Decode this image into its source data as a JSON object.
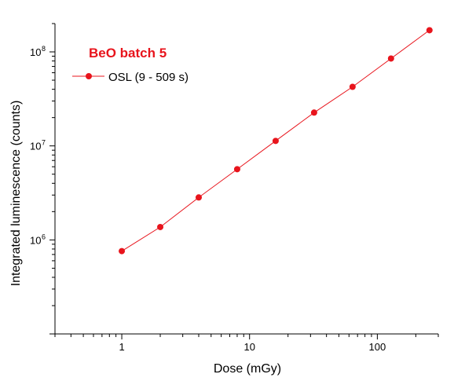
{
  "chart_data": {
    "type": "line",
    "title": "BeO batch 5",
    "xlabel": "Dose (mGy)",
    "ylabel": "Integrated luminescence (counts)",
    "x_scale": "log",
    "y_scale": "log",
    "xlim": [
      0.3,
      300
    ],
    "ylim": [
      100000,
      200000000
    ],
    "x_ticks": [
      {
        "value": 1,
        "label": "1"
      },
      {
        "value": 10,
        "label": "10"
      },
      {
        "value": 100,
        "label": "100"
      }
    ],
    "y_ticks": [
      {
        "value": 1000000,
        "base": "10",
        "exp": "6"
      },
      {
        "value": 10000000,
        "base": "10",
        "exp": "7"
      },
      {
        "value": 100000000,
        "base": "10",
        "exp": "8"
      }
    ],
    "grid": false,
    "legend_position": "top-left",
    "series": [
      {
        "name": "OSL (9 - 509 s)",
        "color": "#e8141c",
        "x": [
          1,
          2,
          4,
          8,
          16,
          32,
          64,
          128,
          256
        ],
        "y": [
          760000,
          1370000,
          2830000,
          5650000,
          11300000,
          22600000,
          42500000,
          85000000,
          170000000
        ]
      }
    ]
  }
}
